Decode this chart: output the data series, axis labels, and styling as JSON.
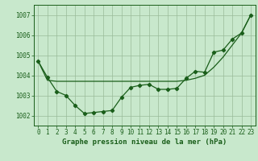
{
  "jagged_y": [
    1004.7,
    1003.9,
    1003.2,
    1003.0,
    1002.5,
    1002.1,
    1002.15,
    1002.2,
    1002.25,
    1002.9,
    1003.4,
    1003.5,
    1003.55,
    1003.3,
    1003.3,
    1003.35,
    1003.85,
    1004.2,
    1004.15,
    1005.15,
    1005.25,
    1005.8,
    1006.1,
    1007.0
  ],
  "smooth_y": [
    1004.7,
    1003.75,
    1003.7,
    1003.7,
    1003.7,
    1003.7,
    1003.7,
    1003.7,
    1003.7,
    1003.7,
    1003.7,
    1003.7,
    1003.7,
    1003.7,
    1003.7,
    1003.7,
    1003.75,
    1003.85,
    1004.0,
    1004.4,
    1004.9,
    1005.5,
    1006.1,
    1007.0
  ],
  "bg_color": "#c8e8cc",
  "grid_color": "#99bb99",
  "line_color": "#1a5e1a",
  "xlabel": "Graphe pression niveau de la mer (hPa)",
  "ylim": [
    1001.5,
    1007.5
  ],
  "xlim": [
    -0.5,
    23.5
  ],
  "yticks": [
    1002,
    1003,
    1004,
    1005,
    1006,
    1007
  ],
  "xticks": [
    0,
    1,
    2,
    3,
    4,
    5,
    6,
    7,
    8,
    9,
    10,
    11,
    12,
    13,
    14,
    15,
    16,
    17,
    18,
    19,
    20,
    21,
    22,
    23
  ],
  "tick_fontsize": 5.5,
  "xlabel_fontsize": 6.5
}
